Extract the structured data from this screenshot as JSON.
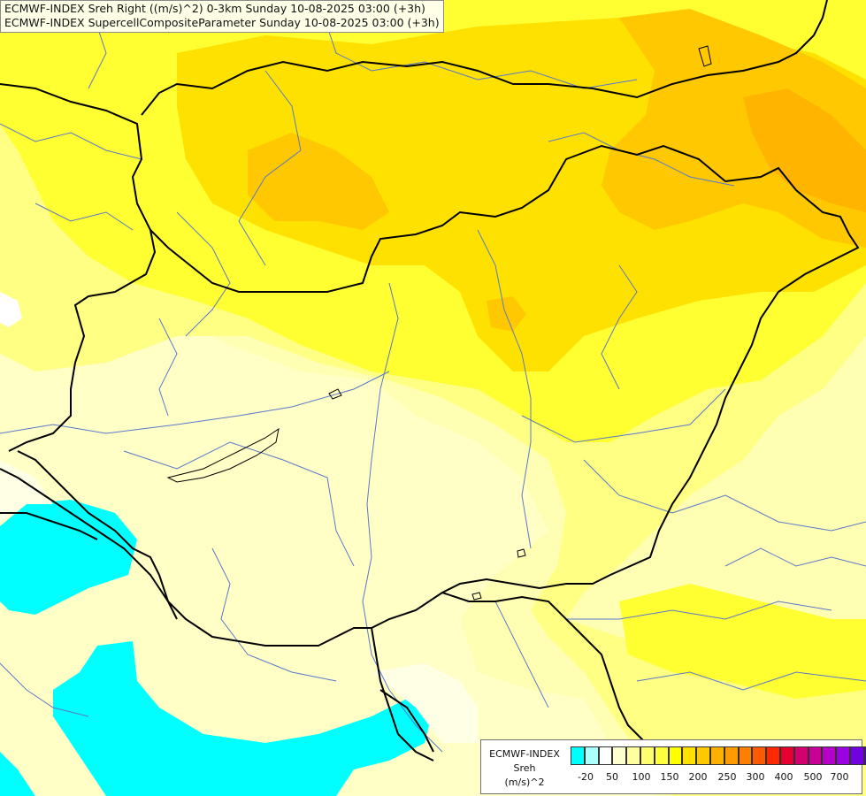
{
  "title": {
    "line1": "ECMWF-INDEX Sreh Right ((m/s)^2) 0-3km Sunday 10-08-2025 03:00 (+3h)",
    "line2": "ECMWF-INDEX SupercellCompositeParameter Sunday 10-08-2025 03:00 (+3h)"
  },
  "legend": {
    "label_lines": [
      "ECMWF-INDEX",
      "Sreh",
      "(m/s)^2"
    ],
    "colors": [
      "#00ffff",
      "#aaffff",
      "#ffffff",
      "#ffffd0",
      "#ffffa0",
      "#ffff70",
      "#ffff3c",
      "#ffff00",
      "#ffe000",
      "#ffc800",
      "#ffb000",
      "#ff9a00",
      "#ff8000",
      "#ff5a00",
      "#ff2800",
      "#e60032",
      "#d40070",
      "#c80096",
      "#b400c8",
      "#9a00e0",
      "#7000e0",
      "#4a00c8",
      "#2a00b4",
      "#000096"
    ],
    "ticks": [
      "-20",
      "50",
      "100",
      "150",
      "200",
      "250",
      "300",
      "400",
      "500",
      "700"
    ]
  },
  "map": {
    "fill_colors": {
      "background": "#ffffc6",
      "pale": "#ffffb4",
      "light_yellow": "#ffff84",
      "yellow": "#ffff32",
      "gold": "#ffe100",
      "amber": "#ffc800",
      "orange": "#ffb400",
      "cyan": "#00ffff"
    },
    "border_color": "#000000",
    "river_color": "#5a78c8"
  }
}
